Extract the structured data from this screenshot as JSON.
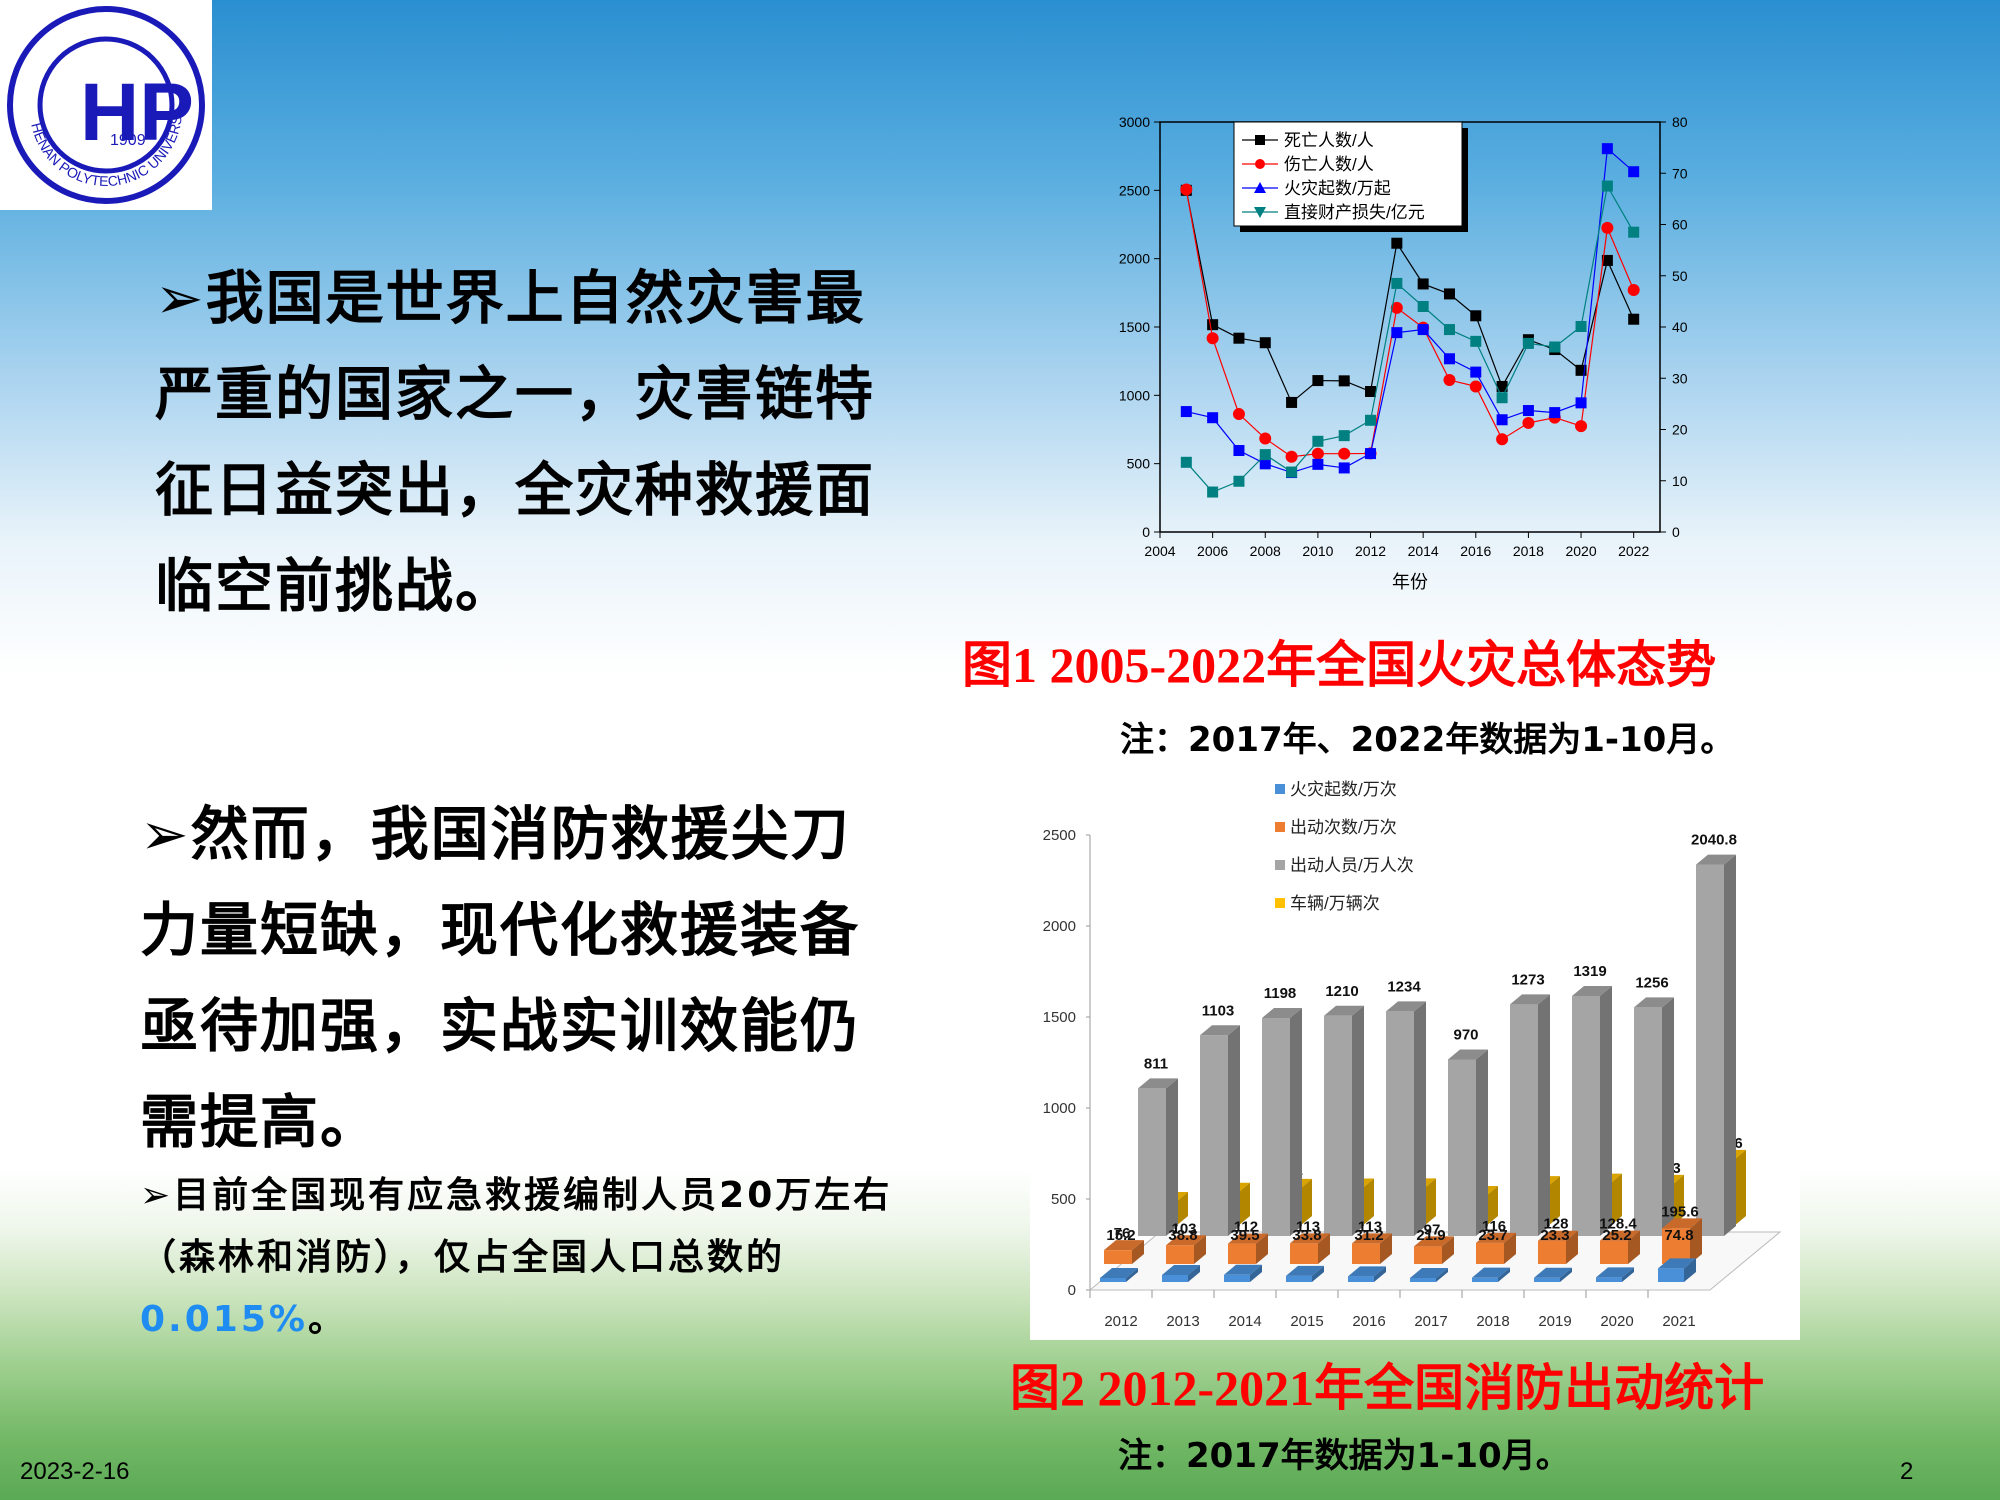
{
  "logo": {
    "name": "Henan Polytechnic University",
    "year": "1909",
    "initials": "HP"
  },
  "text_blocks": {
    "block1": "我国是世界上自然灾害最严重的国家之一，灾害链特征日益突出，全灾种救援面临空前挑战。",
    "block2": "然而，我国消防救援尖刀力量短缺，现代化救援装备亟待加强，实战实训效能仍需提高。",
    "block3_prefix": "目前全国现有应急救援编制人员20万左右（森林和消防），仅占全国人口总数的",
    "block3_highlight": "0.015%",
    "block3_suffix": "。",
    "bullet_glyph": "➢"
  },
  "figure1": {
    "caption": "图1  2005-2022年全国火灾总体态势",
    "note": "注：2017年、2022年数据为1-10月。"
  },
  "figure2": {
    "caption": "图2  2012-2021年全国消防出动统计",
    "note": "注：2017年数据为1-10月。"
  },
  "footer": {
    "date": "2023-2-16",
    "page": "2"
  },
  "colors": {
    "caption_red": "#ff0000",
    "highlight_blue": "#1e8cf0"
  },
  "chart_data": [
    {
      "type": "line",
      "title": "图1  2005-2022年全国火灾总体态势",
      "xlabel": "年份",
      "ylabel_left": "",
      "ylabel_right": "",
      "x": [
        2005,
        2006,
        2007,
        2008,
        2009,
        2010,
        2011,
        2012,
        2013,
        2014,
        2015,
        2016,
        2017,
        2018,
        2019,
        2020,
        2021,
        2022
      ],
      "xlim": [
        2004,
        2023
      ],
      "xticks": [
        2004,
        2006,
        2008,
        2010,
        2012,
        2014,
        2016,
        2018,
        2020,
        2022
      ],
      "ylim_left": [
        0,
        3000
      ],
      "yticks_left": [
        0,
        500,
        1000,
        1500,
        2000,
        2500,
        3000
      ],
      "ylim_right": [
        0,
        80
      ],
      "yticks_right": [
        0,
        10,
        20,
        30,
        40,
        50,
        60,
        70,
        80
      ],
      "legend_position": "top-left inside",
      "grid": false,
      "series": [
        {
          "name": "死亡人数/人",
          "axis": "left",
          "color": "#000000",
          "marker": "square",
          "values": [
            2500,
            1517,
            1418,
            1385,
            948,
            1108,
            1106,
            1028,
            2113,
            1815,
            1742,
            1582,
            1065,
            1407,
            1335,
            1183,
            1987,
            1557
          ]
        },
        {
          "name": "伤亡人数/人",
          "axis": "left",
          "color": "#ff0000",
          "marker": "circle",
          "values": [
            2506,
            1418,
            863,
            684,
            551,
            573,
            573,
            575,
            1640,
            1495,
            1112,
            1065,
            679,
            798,
            837,
            775,
            2225,
            1771
          ]
        },
        {
          "name": "火灾起数/万起",
          "axis": "right",
          "color": "#0000ff",
          "marker": "square",
          "values": [
            23.5,
            22.3,
            15.9,
            13.3,
            11.6,
            13.2,
            12.5,
            15.3,
            38.9,
            39.5,
            33.8,
            31.2,
            21.9,
            23.7,
            23.3,
            25.2,
            74.8,
            70.3
          ]
        },
        {
          "name": "直接财产损失/亿元",
          "axis": "right",
          "color": "#008080",
          "marker": "square",
          "values": [
            13.6,
            7.8,
            9.9,
            15.1,
            11.7,
            17.7,
            18.8,
            21.8,
            48.5,
            44.0,
            39.5,
            37.2,
            26.2,
            36.8,
            36.1,
            40.1,
            67.5,
            58.5
          ]
        }
      ]
    },
    {
      "type": "bar",
      "title": "图2  2012-2021年全国消防出动统计",
      "xlabel": "",
      "ylabel": "",
      "categories": [
        "2012",
        "2013",
        "2014",
        "2015",
        "2016",
        "2017",
        "2018",
        "2019",
        "2020",
        "2021"
      ],
      "ylim": [
        0,
        2500
      ],
      "yticks": [
        0,
        500,
        1000,
        1500,
        2000,
        2500
      ],
      "legend_position": "top",
      "grid": false,
      "series": [
        {
          "name": "火灾起数/万次",
          "color": "#4a90d9",
          "values": [
            15.2,
            38.8,
            39.5,
            33.8,
            31.2,
            21.9,
            23.7,
            23.3,
            25.2,
            74.8
          ]
        },
        {
          "name": "出动次数/万次",
          "color": "#ed7d31",
          "values": [
            76,
            103,
            112,
            113,
            113,
            97,
            116,
            128,
            128.4,
            195.6
          ]
        },
        {
          "name": "出动人员/万人次",
          "color": "#a5a5a5",
          "values": [
            811,
            1103,
            1198,
            1210,
            1234,
            970,
            1273,
            1319,
            1256,
            2040.8
          ]
        },
        {
          "name": "车辆/万辆次",
          "color": "#ffc000",
          "values": [
            132,
            183,
            204,
            206,
            207,
            165,
            219,
            233,
            226.3,
            363.6
          ]
        }
      ]
    }
  ]
}
